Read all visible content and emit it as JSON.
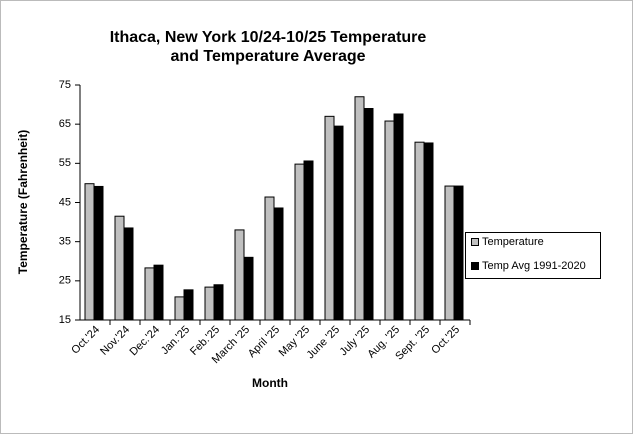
{
  "chart_data": {
    "type": "bar",
    "title": [
      "Ithaca, New York 10/24-10/25 Temperature",
      "and Temperature Average"
    ],
    "x_label": "Month",
    "y_label": "Temperature (Fahrenheit)",
    "categories": [
      "Oct.'24",
      "Nov.'24",
      "Dec.'24",
      "Jan.'25",
      "Feb.'25",
      "March '25",
      "April '25",
      "May '25",
      "June '25",
      "July '25",
      "Aug. '25",
      "Sept. '25",
      "Oct.'25"
    ],
    "series": [
      {
        "name": "Temperature",
        "color": "#c0c0c0",
        "values": [
          49.8,
          41.5,
          28.3,
          20.9,
          23.4,
          38,
          46.4,
          54.8,
          67,
          72,
          65.8,
          60.4,
          49.2
        ]
      },
      {
        "name": "Temp Avg 1991-2020",
        "color": "#000000",
        "values": [
          49.1,
          38.5,
          29,
          22.7,
          24,
          31,
          43.6,
          55.6,
          64.5,
          69,
          67.6,
          60.2,
          49.2
        ]
      }
    ],
    "ylim": [
      15,
      75
    ],
    "yticks": [
      15,
      25,
      35,
      45,
      55,
      65,
      75
    ],
    "grid": false,
    "legend": "right"
  }
}
